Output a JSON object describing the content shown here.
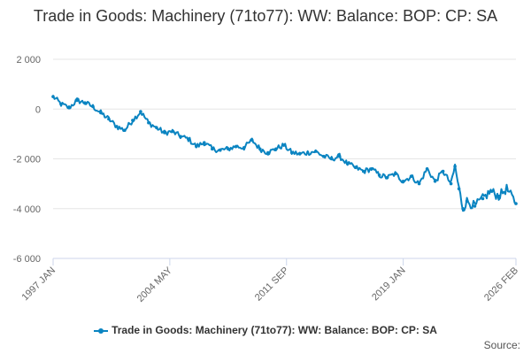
{
  "chart_data": {
    "type": "line",
    "title": "Trade in Goods: Machinery (71to77): WW: Balance: BOP: CP: SA",
    "xlabel": "",
    "ylabel": "",
    "ylim": [
      -6000,
      2000
    ],
    "yticks": [
      2000,
      0,
      -2000,
      -4000,
      -6000
    ],
    "ytick_labels": [
      "2 000",
      "0",
      "-2 000",
      "-4 000",
      "-6 000"
    ],
    "x_range": [
      "1997 JAN",
      "2026 FEB"
    ],
    "xtick_labels": [
      "1997 JAN",
      "2004 MAY",
      "2011 SEP",
      "2019 JAN",
      "2026 FEB"
    ],
    "grid": true,
    "legend_position": "bottom",
    "series": [
      {
        "name": "Trade in Goods: Machinery (71to77): WW: Balance: BOP: CP: SA",
        "color": "#0a84c1",
        "points": [
          [
            "1997-01",
            500
          ],
          [
            "1997-07",
            200
          ],
          [
            "1998-01",
            50
          ],
          [
            "1998-07",
            350
          ],
          [
            "1999-01",
            250
          ],
          [
            "1999-07",
            100
          ],
          [
            "2000-01",
            -150
          ],
          [
            "2000-07",
            -400
          ],
          [
            "2001-01",
            -700
          ],
          [
            "2001-07",
            -850
          ],
          [
            "2002-01",
            -450
          ],
          [
            "2002-07",
            -100
          ],
          [
            "2003-01",
            -550
          ],
          [
            "2003-07",
            -750
          ],
          [
            "2004-01",
            -950
          ],
          [
            "2004-07",
            -900
          ],
          [
            "2005-01",
            -1100
          ],
          [
            "2005-07",
            -1200
          ],
          [
            "2006-01",
            -1500
          ],
          [
            "2006-07",
            -1350
          ],
          [
            "2007-01",
            -1600
          ],
          [
            "2007-07",
            -1650
          ],
          [
            "2008-01",
            -1600
          ],
          [
            "2008-07",
            -1500
          ],
          [
            "2009-01",
            -1550
          ],
          [
            "2009-07",
            -1250
          ],
          [
            "2010-01",
            -1600
          ],
          [
            "2010-07",
            -1750
          ],
          [
            "2011-01",
            -1600
          ],
          [
            "2011-07",
            -1450
          ],
          [
            "2012-01",
            -1750
          ],
          [
            "2012-07",
            -1800
          ],
          [
            "2013-01",
            -1750
          ],
          [
            "2013-07",
            -1700
          ],
          [
            "2014-01",
            -1900
          ],
          [
            "2014-07",
            -2000
          ],
          [
            "2015-01",
            -1900
          ],
          [
            "2015-07",
            -2200
          ],
          [
            "2016-01",
            -2350
          ],
          [
            "2016-07",
            -2500
          ],
          [
            "2017-01",
            -2400
          ],
          [
            "2017-07",
            -2650
          ],
          [
            "2018-01",
            -2750
          ],
          [
            "2018-07",
            -2600
          ],
          [
            "2019-01",
            -2900
          ],
          [
            "2019-07",
            -2700
          ],
          [
            "2020-01",
            -3000
          ],
          [
            "2020-07",
            -2400
          ],
          [
            "2021-01",
            -2900
          ],
          [
            "2021-07",
            -2500
          ],
          [
            "2022-01",
            -3000
          ],
          [
            "2022-04",
            -2300
          ],
          [
            "2022-07",
            -3200
          ],
          [
            "2022-10",
            -4000
          ],
          [
            "2023-01",
            -3700
          ],
          [
            "2023-07",
            -3900
          ],
          [
            "2024-01",
            -3600
          ],
          [
            "2024-07",
            -3300
          ],
          [
            "2025-01",
            -3500
          ],
          [
            "2025-07",
            -3200
          ],
          [
            "2026-02",
            -3800
          ]
        ]
      }
    ]
  },
  "credits": "Source:"
}
